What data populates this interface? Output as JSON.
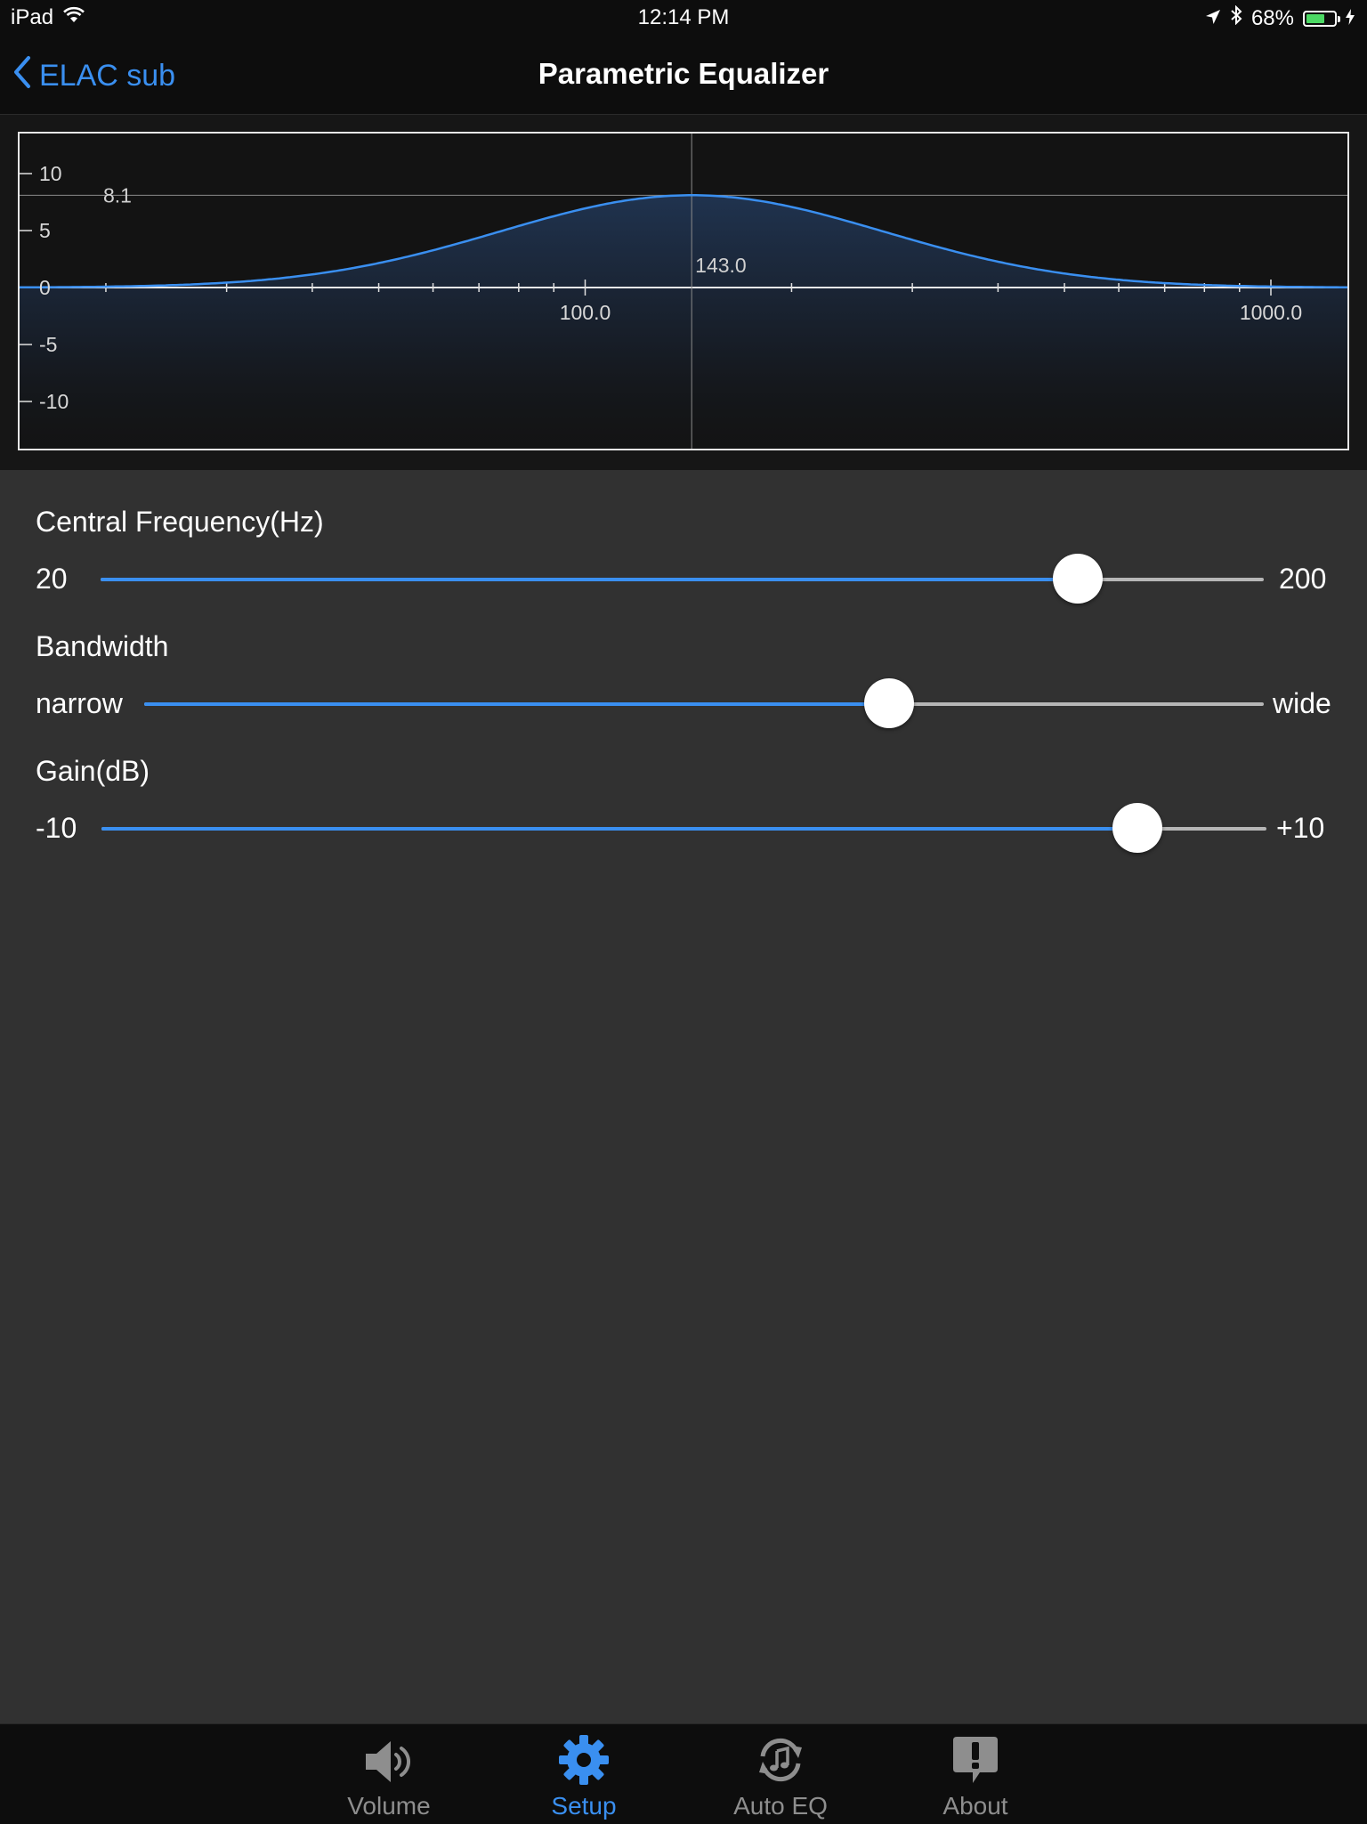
{
  "status_bar": {
    "device": "iPad",
    "time": "12:14 PM",
    "battery_percent_text": "68%",
    "battery_level": 0.68
  },
  "nav": {
    "back_label": "ELAC sub",
    "title": "Parametric Equalizer"
  },
  "graph": {
    "y_ticks": [
      "10",
      "5",
      "0",
      "-5",
      "-10"
    ],
    "x_labels": [
      "100.0",
      "1000.0"
    ],
    "peak_gain_label": "8.1",
    "center_freq_label": "143.0",
    "curve_color": "#3a8ff0"
  },
  "chart_data": {
    "type": "area",
    "x_scale": "log",
    "xlim": [
      20,
      2000
    ],
    "ylim": [
      -14,
      14
    ],
    "peak": {
      "frequency_hz": 143.0,
      "gain_db": 8.1
    },
    "x_tick_labels": [
      "100.0",
      "1000.0"
    ],
    "y_tick_labels": [
      "10",
      "5",
      "0",
      "-5",
      "-10"
    ]
  },
  "controls": {
    "frequency": {
      "label": "Central Frequency(Hz)",
      "min_label": "20",
      "max_label": "200",
      "fraction": 0.84
    },
    "bandwidth": {
      "label": "Bandwidth",
      "min_label": "narrow",
      "max_label": "wide",
      "fraction": 0.665
    },
    "gain": {
      "label": "Gain(dB)",
      "min_label": "-10",
      "max_label": "+10",
      "fraction": 0.889
    }
  },
  "tabs": [
    {
      "label": "Volume",
      "icon": "speaker-icon",
      "active": false
    },
    {
      "label": "Setup",
      "icon": "gear-icon",
      "active": true
    },
    {
      "label": "Auto EQ",
      "icon": "auto-eq-icon",
      "active": false
    },
    {
      "label": "About",
      "icon": "about-icon",
      "active": false
    }
  ],
  "colors": {
    "accent": "#3a8ff0",
    "background": "#313131",
    "bar": "#0d0d0d"
  }
}
